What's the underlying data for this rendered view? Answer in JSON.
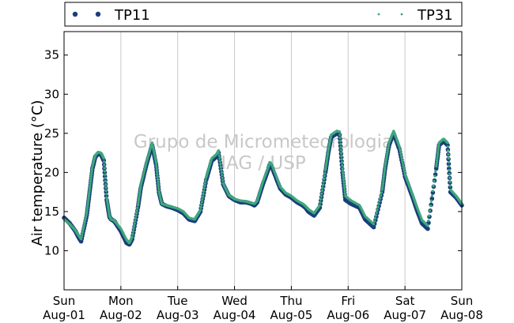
{
  "chart_data": {
    "type": "scatter",
    "ylabel": "Air temperature (°C)",
    "xlabel": "",
    "ylim": [
      5,
      38
    ],
    "yticks": [
      10,
      15,
      20,
      25,
      30,
      35
    ],
    "xlim": [
      0,
      7
    ],
    "x_unit": "days since Sun Aug-01 00:00",
    "xticks": [
      {
        "day": "Sun",
        "date": "Aug-01"
      },
      {
        "day": "Mon",
        "date": "Aug-02"
      },
      {
        "day": "Tue",
        "date": "Aug-03"
      },
      {
        "day": "Wed",
        "date": "Aug-04"
      },
      {
        "day": "Thu",
        "date": "Aug-05"
      },
      {
        "day": "Fri",
        "date": "Aug-06"
      },
      {
        "day": "Sat",
        "date": "Aug-07"
      },
      {
        "day": "Sun",
        "date": "Aug-08"
      }
    ],
    "grid": "vertical",
    "legend_position": "top",
    "watermark": [
      "Grupo de Micrometeorologia",
      "IAG / USP"
    ],
    "series": [
      {
        "name": "TP11",
        "color": "#1a3f7a",
        "marker": "dot",
        "x": [
          0,
          0.1,
          0.2,
          0.25,
          0.3,
          0.4,
          0.45,
          0.5,
          0.55,
          0.6,
          0.65,
          0.7,
          0.75,
          0.8,
          0.83,
          0.88,
          0.9,
          1.0,
          1.1,
          1.15,
          1.2,
          1.3,
          1.35,
          1.45,
          1.55,
          1.62,
          1.67,
          1.72,
          1.8,
          1.9,
          2.0,
          2.1,
          2.2,
          2.3,
          2.4,
          2.5,
          2.6,
          2.68,
          2.72,
          2.8,
          2.9,
          3.0,
          3.1,
          3.2,
          3.3,
          3.35,
          3.4,
          3.5,
          3.6,
          3.62,
          3.65,
          3.8,
          3.9,
          4.0,
          4.1,
          4.2,
          4.25,
          4.3,
          4.4,
          4.5,
          4.6,
          4.65,
          4.7,
          4.8,
          4.85,
          4.9,
          4.95,
          5.05,
          5.2,
          5.3,
          5.45,
          5.6,
          5.65,
          5.72,
          5.8,
          5.9,
          6.0,
          6.05,
          6.15,
          6.22,
          6.3,
          6.4,
          6.55,
          6.6,
          6.68,
          6.75,
          6.8,
          6.9,
          7.0
        ],
        "y": [
          14.2,
          13.5,
          12.5,
          11.8,
          11.2,
          14.5,
          17.5,
          20.5,
          22.0,
          22.4,
          22.3,
          21.5,
          16.5,
          14.3,
          14.0,
          13.8,
          13.6,
          12.5,
          11.0,
          10.8,
          11.5,
          15.5,
          18.0,
          21.0,
          23.5,
          21.0,
          17.5,
          16.0,
          15.7,
          15.5,
          15.2,
          14.8,
          14.0,
          13.8,
          15.0,
          19.0,
          21.5,
          22.0,
          22.5,
          18.5,
          17.0,
          16.5,
          16.2,
          16.2,
          16.0,
          15.8,
          16.2,
          18.5,
          20.5,
          21.0,
          20.8,
          18.0,
          17.2,
          16.8,
          16.2,
          15.8,
          15.5,
          15.0,
          14.5,
          15.5,
          20.0,
          22.5,
          24.5,
          25.0,
          24.8,
          20.0,
          16.5,
          16.0,
          15.5,
          14.0,
          13.0,
          17.5,
          20.5,
          23.5,
          25.0,
          23.0,
          19.5,
          18.5,
          16.5,
          15.0,
          13.5,
          12.8,
          20.5,
          23.5,
          24.0,
          23.5,
          17.5,
          16.8,
          15.8
        ]
      },
      {
        "name": "TP31",
        "color": "#3ea87c",
        "marker": "small-dot",
        "x": [
          0,
          0.1,
          0.2,
          0.25,
          0.3,
          0.4,
          0.45,
          0.5,
          0.55,
          0.6,
          0.65,
          0.7,
          0.75,
          0.8,
          0.83,
          0.88,
          0.9,
          1.0,
          1.1,
          1.15,
          1.2,
          1.3,
          1.35,
          1.45,
          1.55,
          1.62,
          1.67,
          1.72,
          1.8,
          1.9,
          2.0,
          2.1,
          2.2,
          2.3,
          2.4,
          2.5,
          2.6,
          2.68,
          2.72,
          2.8,
          2.9,
          3.0,
          3.1,
          3.2,
          3.3,
          3.35,
          3.4,
          3.5,
          3.6,
          3.62,
          3.65,
          3.8,
          3.9,
          4.0,
          4.1,
          4.2,
          4.25,
          4.3,
          4.4,
          4.5,
          4.6,
          4.65,
          4.7,
          4.8,
          4.85,
          4.9,
          4.95,
          5.05,
          5.2,
          5.3,
          5.45,
          5.6,
          5.65,
          5.72,
          5.8,
          5.9,
          6.0,
          6.05,
          6.15,
          6.22,
          6.3,
          6.4,
          6.55,
          6.6,
          6.68,
          6.75,
          6.8,
          6.9,
          7.0
        ],
        "y": [
          14.0,
          13.4,
          12.6,
          12.0,
          11.5,
          14.8,
          17.8,
          20.8,
          22.2,
          22.6,
          22.5,
          21.8,
          16.8,
          14.4,
          14.0,
          13.9,
          13.7,
          12.8,
          11.4,
          11.0,
          11.8,
          15.8,
          18.3,
          21.3,
          23.8,
          21.3,
          17.6,
          16.0,
          15.8,
          15.6,
          15.4,
          15.0,
          14.2,
          14.0,
          15.2,
          19.3,
          21.8,
          22.3,
          22.8,
          18.6,
          17.1,
          16.6,
          16.4,
          16.3,
          16.1,
          16.0,
          16.4,
          18.8,
          20.8,
          21.3,
          21.1,
          18.2,
          17.4,
          17.0,
          16.4,
          16.0,
          15.7,
          15.3,
          14.8,
          15.8,
          20.3,
          22.8,
          24.8,
          25.3,
          25.2,
          20.5,
          17.0,
          16.4,
          15.8,
          14.4,
          13.4,
          17.8,
          20.8,
          23.8,
          25.3,
          23.3,
          19.8,
          18.8,
          16.8,
          15.4,
          13.9,
          13.2,
          20.8,
          23.8,
          24.3,
          23.8,
          17.8,
          17.0,
          16.0
        ]
      }
    ]
  }
}
